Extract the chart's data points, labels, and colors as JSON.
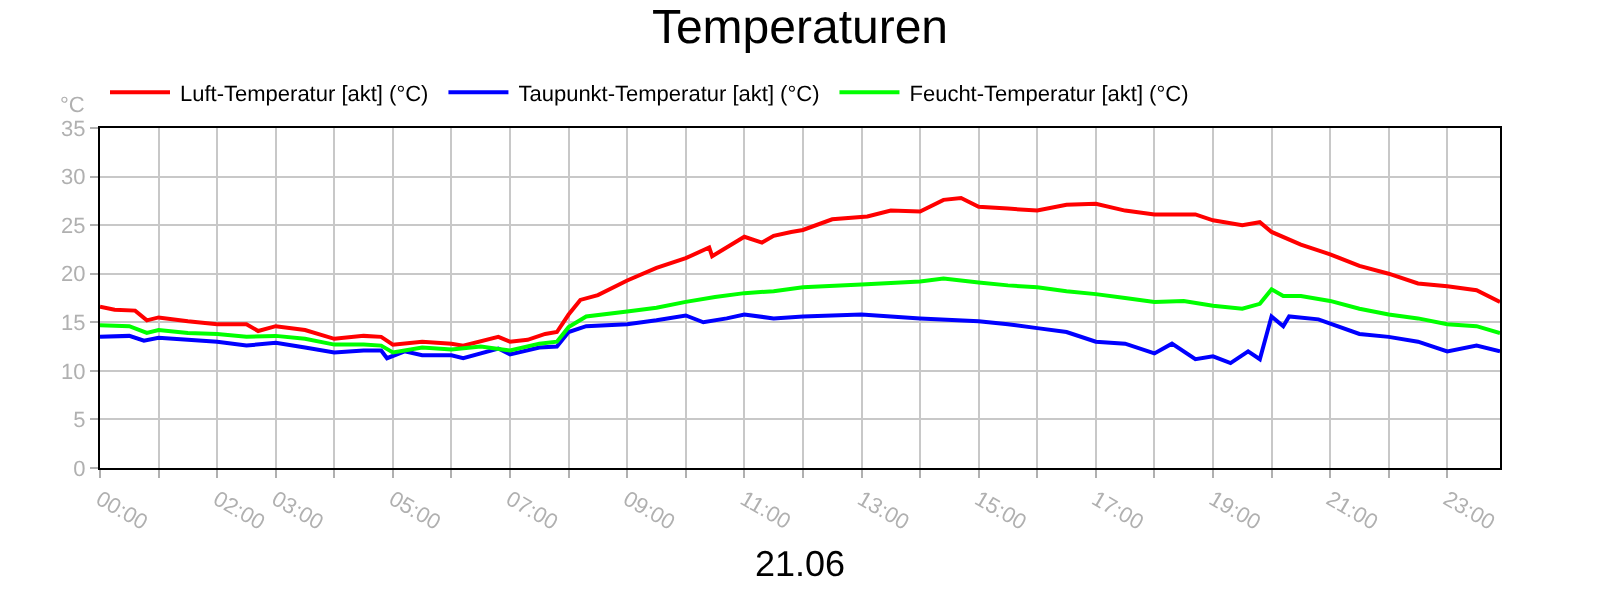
{
  "chart_data": {
    "type": "line",
    "title": "Temperaturen",
    "xlabel": "21.06",
    "ylabel": "°C",
    "xlim": [
      0,
      23.9
    ],
    "ylim": [
      0,
      35
    ],
    "yticks": [
      0,
      5,
      10,
      15,
      20,
      25,
      30,
      35
    ],
    "xticks": [
      {
        "value": 0,
        "label": "00:00"
      },
      {
        "value": 1,
        "label": null
      },
      {
        "value": 2,
        "label": "02:00"
      },
      {
        "value": 3,
        "label": "03:00"
      },
      {
        "value": 4,
        "label": null
      },
      {
        "value": 5,
        "label": "05:00"
      },
      {
        "value": 6,
        "label": null
      },
      {
        "value": 7,
        "label": "07:00"
      },
      {
        "value": 8,
        "label": null
      },
      {
        "value": 9,
        "label": "09:00"
      },
      {
        "value": 10,
        "label": null
      },
      {
        "value": 11,
        "label": "11:00"
      },
      {
        "value": 12,
        "label": null
      },
      {
        "value": 13,
        "label": "13:00"
      },
      {
        "value": 14,
        "label": null
      },
      {
        "value": 15,
        "label": "15:00"
      },
      {
        "value": 16,
        "label": null
      },
      {
        "value": 17,
        "label": "17:00"
      },
      {
        "value": 18,
        "label": null
      },
      {
        "value": 19,
        "label": "19:00"
      },
      {
        "value": 20,
        "label": null
      },
      {
        "value": 21,
        "label": "21:00"
      },
      {
        "value": 22,
        "label": null
      },
      {
        "value": 23,
        "label": "23:00"
      }
    ],
    "grid": true,
    "legend": "top left",
    "marker": "none",
    "line_style": "solid",
    "series": [
      {
        "name": "Luft-Temperatur [akt] (°C)",
        "color": "#ff0000",
        "x": [
          0,
          0.25,
          0.6,
          0.8,
          1.0,
          1.5,
          2.0,
          2.5,
          2.7,
          3.0,
          3.5,
          4.0,
          4.5,
          4.8,
          5.0,
          5.5,
          6.0,
          6.2,
          6.8,
          7.0,
          7.3,
          7.6,
          7.8,
          8.0,
          8.2,
          8.5,
          9.0,
          9.5,
          10.0,
          10.4,
          10.45,
          11.0,
          11.3,
          11.5,
          11.8,
          12.0,
          12.5,
          13.1,
          13.5,
          14.0,
          14.4,
          14.7,
          15.0,
          15.5,
          16.0,
          16.5,
          17.0,
          17.5,
          18.0,
          18.7,
          19.0,
          19.5,
          19.8,
          20.0,
          20.5,
          21.0,
          21.5,
          22.0,
          22.5,
          23.0,
          23.5,
          23.9
        ],
        "values": [
          16.6,
          16.3,
          16.2,
          15.2,
          15.5,
          15.1,
          14.8,
          14.8,
          14.1,
          14.6,
          14.2,
          13.3,
          13.6,
          13.5,
          12.7,
          13.0,
          12.8,
          12.6,
          13.5,
          13.0,
          13.2,
          13.8,
          14.0,
          15.8,
          17.3,
          17.8,
          19.3,
          20.6,
          21.6,
          22.7,
          21.8,
          23.8,
          23.2,
          23.9,
          24.3,
          24.5,
          25.6,
          25.9,
          26.5,
          26.4,
          27.6,
          27.8,
          26.9,
          26.7,
          26.5,
          27.1,
          27.2,
          26.5,
          26.1,
          26.1,
          25.5,
          25.0,
          25.3,
          24.3,
          23.0,
          22.0,
          20.8,
          20.0,
          19.0,
          18.7,
          18.3,
          17.1
        ]
      },
      {
        "name": "Taupunkt-Temperatur [akt] (°C)",
        "color": "#0000ff",
        "x": [
          0,
          0.5,
          0.75,
          1.0,
          1.5,
          2.0,
          2.5,
          3.0,
          3.5,
          4.0,
          4.5,
          4.8,
          4.9,
          5.2,
          5.5,
          6.0,
          6.2,
          6.8,
          7.0,
          7.5,
          7.8,
          8.0,
          8.3,
          9.0,
          9.5,
          10.0,
          10.3,
          10.7,
          11.0,
          11.5,
          12.0,
          13.0,
          14.0,
          15.0,
          15.5,
          16.0,
          16.5,
          17.0,
          17.5,
          18.0,
          18.3,
          18.7,
          19.0,
          19.3,
          19.6,
          19.8,
          20.0,
          20.2,
          20.3,
          20.8,
          21.5,
          22.0,
          22.5,
          23.0,
          23.5,
          23.9
        ],
        "values": [
          13.5,
          13.6,
          13.1,
          13.4,
          13.2,
          13.0,
          12.6,
          12.9,
          12.4,
          11.9,
          12.1,
          12.1,
          11.3,
          12.0,
          11.6,
          11.6,
          11.3,
          12.3,
          11.7,
          12.4,
          12.5,
          14.0,
          14.6,
          14.8,
          15.2,
          15.7,
          15.0,
          15.4,
          15.8,
          15.4,
          15.6,
          15.8,
          15.4,
          15.1,
          14.8,
          14.4,
          14.0,
          13.0,
          12.8,
          11.8,
          12.8,
          11.2,
          11.5,
          10.8,
          12.0,
          11.2,
          15.6,
          14.6,
          15.6,
          15.3,
          13.8,
          13.5,
          13.0,
          12.0,
          12.6,
          12.0
        ]
      },
      {
        "name": "Feucht-Temperatur [akt] (°C)",
        "color": "#00ff00",
        "x": [
          0,
          0.5,
          0.8,
          1.0,
          1.5,
          2.0,
          2.5,
          3.0,
          3.5,
          4.0,
          4.5,
          4.8,
          5.0,
          5.5,
          6.0,
          6.5,
          7.0,
          7.5,
          7.8,
          8.0,
          8.3,
          9.0,
          9.5,
          10.0,
          10.5,
          11.0,
          11.5,
          12.0,
          13.0,
          14.0,
          14.4,
          15.0,
          15.5,
          16.0,
          16.5,
          17.0,
          17.5,
          18.0,
          18.5,
          19.0,
          19.5,
          19.8,
          20.0,
          20.2,
          20.5,
          21.0,
          21.5,
          22.0,
          22.5,
          23.0,
          23.5,
          23.9
        ],
        "values": [
          14.7,
          14.6,
          13.9,
          14.2,
          13.9,
          13.8,
          13.5,
          13.6,
          13.3,
          12.7,
          12.7,
          12.6,
          11.9,
          12.4,
          12.2,
          12.5,
          12.1,
          12.8,
          13.0,
          14.5,
          15.6,
          16.1,
          16.5,
          17.1,
          17.6,
          18.0,
          18.2,
          18.6,
          18.9,
          19.2,
          19.5,
          19.1,
          18.8,
          18.6,
          18.2,
          17.9,
          17.5,
          17.1,
          17.2,
          16.7,
          16.4,
          16.9,
          18.4,
          17.7,
          17.7,
          17.2,
          16.4,
          15.8,
          15.4,
          14.8,
          14.6,
          13.9
        ]
      }
    ]
  }
}
